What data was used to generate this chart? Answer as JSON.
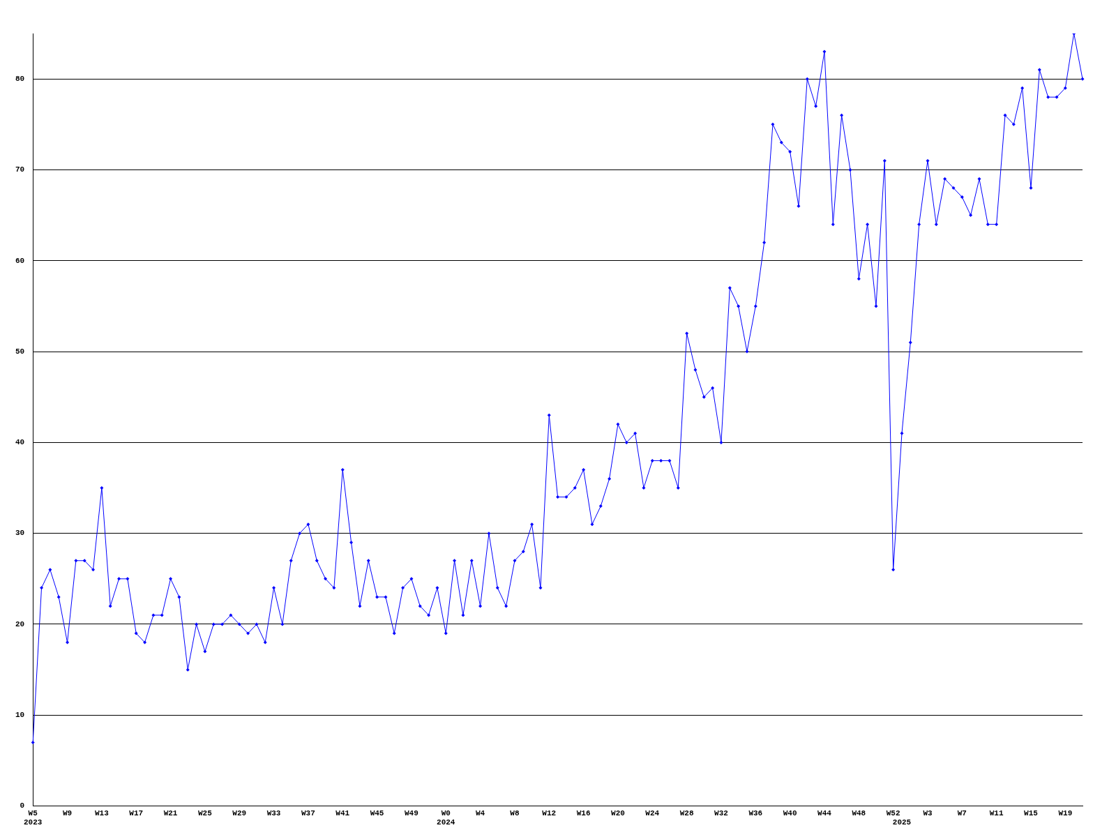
{
  "chart_data": {
    "type": "line",
    "categories": [
      "W5\n2023",
      null,
      null,
      null,
      "W9",
      null,
      null,
      null,
      "W13",
      null,
      null,
      null,
      "W17",
      null,
      null,
      null,
      "W21",
      null,
      null,
      null,
      "W25",
      null,
      null,
      null,
      "W29",
      null,
      null,
      null,
      "W33",
      null,
      null,
      null,
      "W37",
      null,
      null,
      null,
      "W41",
      null,
      null,
      null,
      "W45",
      null,
      null,
      null,
      "W49",
      null,
      null,
      null,
      "W0\n2024",
      null,
      null,
      null,
      "W4",
      null,
      null,
      null,
      "W8",
      null,
      null,
      null,
      "W12",
      null,
      null,
      null,
      "W16",
      null,
      null,
      null,
      "W20",
      null,
      null,
      null,
      "W24",
      null,
      null,
      null,
      "W28",
      null,
      null,
      null,
      "W32",
      null,
      null,
      null,
      "W36",
      null,
      null,
      null,
      "W40",
      null,
      null,
      null,
      "W44",
      null,
      null,
      null,
      "W48",
      null,
      null,
      null,
      "W52",
      "\n2025",
      null,
      null,
      "W3",
      null,
      null,
      null,
      "W7",
      null,
      null,
      null,
      "W11",
      null,
      null,
      null,
      "W15",
      null,
      null,
      null,
      "W19",
      null,
      null
    ],
    "series": [
      {
        "color": "#0000ff",
        "values": [
          7,
          24,
          26,
          23,
          18,
          27,
          27,
          26,
          35,
          22,
          25,
          25,
          19,
          18,
          21,
          21,
          25,
          23,
          15,
          20,
          17,
          20,
          20,
          21,
          20,
          19,
          20,
          18,
          24,
          20,
          27,
          30,
          31,
          27,
          25,
          24,
          37,
          29,
          22,
          27,
          23,
          23,
          19,
          24,
          25,
          22,
          21,
          24,
          19,
          27,
          21,
          27,
          22,
          30,
          24,
          22,
          27,
          28,
          31,
          24,
          43,
          34,
          34,
          35,
          37,
          31,
          33,
          36,
          42,
          40,
          41,
          35,
          38,
          38,
          38,
          35,
          52,
          48,
          45,
          46,
          40,
          57,
          55,
          50,
          55,
          62,
          75,
          73,
          72,
          66,
          80,
          77,
          83,
          64,
          76,
          70,
          58,
          64,
          55,
          71,
          26,
          41,
          51,
          64,
          71,
          64,
          69,
          68,
          67,
          65,
          69,
          64,
          64,
          76,
          75,
          79,
          68,
          81,
          78,
          78,
          79,
          85,
          80
        ]
      }
    ],
    "ylim": [
      0,
      85
    ],
    "yticks": [
      0,
      10,
      20,
      30,
      40,
      50,
      60,
      70,
      80
    ],
    "grid": "y",
    "marker": "diamond",
    "line_style": "solid"
  }
}
